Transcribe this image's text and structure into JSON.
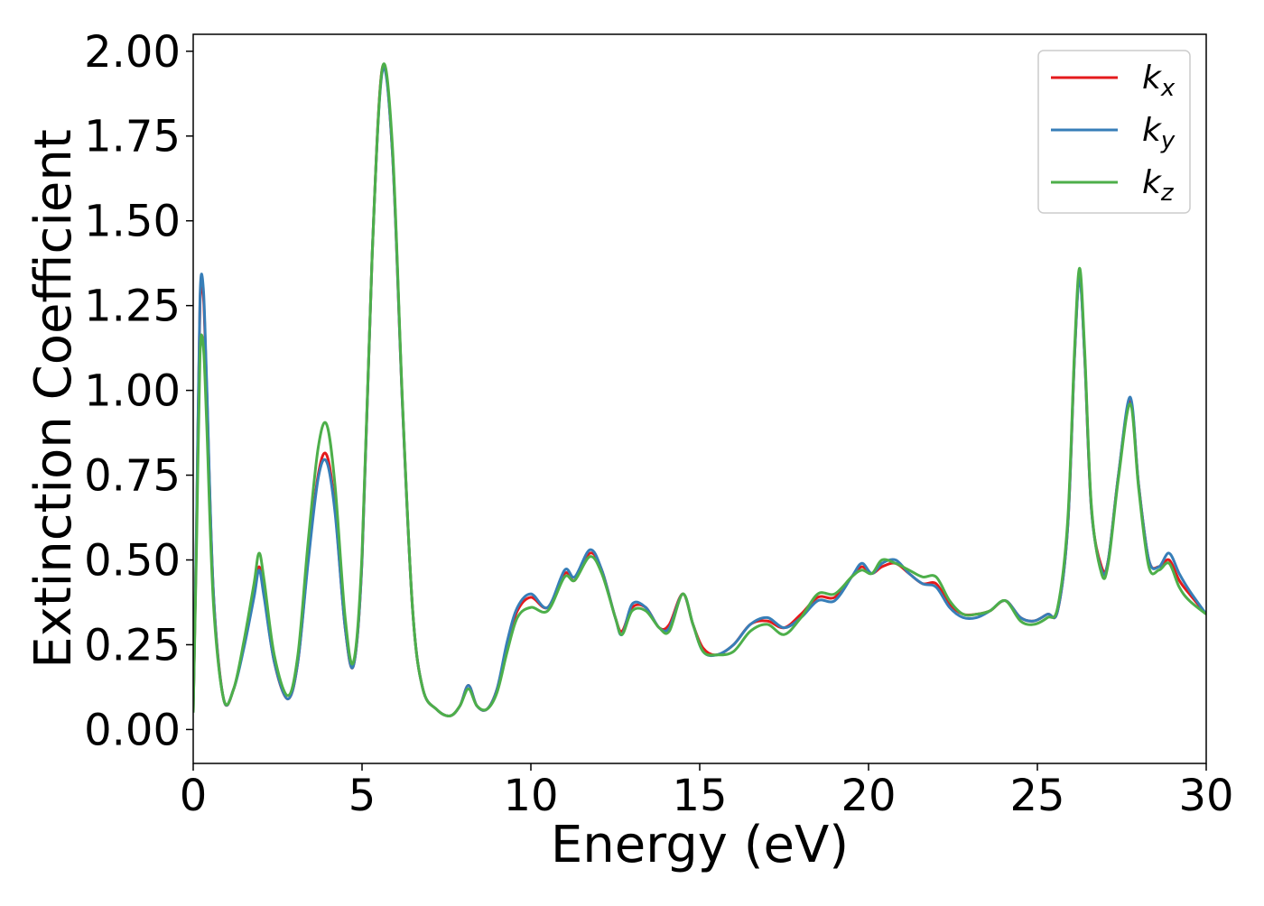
{
  "chart_data": {
    "type": "line",
    "xlabel": "Energy (eV)",
    "ylabel": "Extinction Coefficient",
    "xlim": [
      0,
      30
    ],
    "ylim": [
      -0.1,
      2.05
    ],
    "xticks": [
      0,
      5,
      10,
      15,
      20,
      25,
      30
    ],
    "xtick_labels": [
      "0",
      "5",
      "10",
      "15",
      "20",
      "25",
      "30"
    ],
    "yticks": [
      0,
      0.25,
      0.5,
      0.75,
      1.0,
      1.25,
      1.5,
      1.75,
      2.0
    ],
    "ytick_labels": [
      "0.00",
      "0.25",
      "0.50",
      "0.75",
      "1.00",
      "1.25",
      "1.50",
      "1.75",
      "2.00"
    ],
    "grid": false,
    "legend_position": "top-right",
    "series": [
      {
        "name": "k",
        "subscript": "x",
        "color": "#e41a1c",
        "x": [
          0,
          0.1,
          0.2,
          0.3,
          0.4,
          0.6,
          0.9,
          1.2,
          1.5,
          1.8,
          1.95,
          2.1,
          2.4,
          2.8,
          3.1,
          3.4,
          3.7,
          3.95,
          4.2,
          4.5,
          4.75,
          5.0,
          5.3,
          5.6,
          5.9,
          6.2,
          6.5,
          6.8,
          7.2,
          7.6,
          7.9,
          8.15,
          8.4,
          8.7,
          9.0,
          9.3,
          9.6,
          10.0,
          10.5,
          11.0,
          11.3,
          11.75,
          12.1,
          12.5,
          12.7,
          13.0,
          13.4,
          13.8,
          14.1,
          14.5,
          14.8,
          15.1,
          15.5,
          16.0,
          16.5,
          17.0,
          17.5,
          18.0,
          18.5,
          19.0,
          19.5,
          19.8,
          20.1,
          20.4,
          20.8,
          21.2,
          21.6,
          22.0,
          22.4,
          22.8,
          23.2,
          23.6,
          24.05,
          24.5,
          24.9,
          25.3,
          25.6,
          25.9,
          26.1,
          26.25,
          26.4,
          26.6,
          26.9,
          27.1,
          27.4,
          27.75,
          28.0,
          28.3,
          28.6,
          28.9,
          29.2,
          29.5,
          30.0
        ],
        "y": [
          0.05,
          0.6,
          1.25,
          1.28,
          1.0,
          0.4,
          0.09,
          0.12,
          0.25,
          0.4,
          0.48,
          0.4,
          0.2,
          0.09,
          0.2,
          0.5,
          0.75,
          0.81,
          0.65,
          0.3,
          0.19,
          0.5,
          1.4,
          1.95,
          1.7,
          0.95,
          0.35,
          0.12,
          0.06,
          0.04,
          0.07,
          0.13,
          0.07,
          0.06,
          0.12,
          0.25,
          0.35,
          0.39,
          0.36,
          0.46,
          0.44,
          0.52,
          0.47,
          0.33,
          0.29,
          0.36,
          0.36,
          0.3,
          0.31,
          0.4,
          0.31,
          0.24,
          0.22,
          0.25,
          0.31,
          0.32,
          0.3,
          0.34,
          0.39,
          0.39,
          0.45,
          0.48,
          0.46,
          0.48,
          0.49,
          0.46,
          0.43,
          0.43,
          0.37,
          0.34,
          0.34,
          0.35,
          0.38,
          0.33,
          0.32,
          0.34,
          0.35,
          0.6,
          1.1,
          1.34,
          1.1,
          0.65,
          0.48,
          0.5,
          0.75,
          0.97,
          0.72,
          0.5,
          0.48,
          0.5,
          0.44,
          0.4,
          0.34
        ]
      },
      {
        "name": "k",
        "subscript": "y",
        "color": "#377eb8",
        "x": [
          0,
          0.1,
          0.2,
          0.3,
          0.4,
          0.6,
          0.9,
          1.2,
          1.5,
          1.8,
          1.95,
          2.1,
          2.4,
          2.8,
          3.1,
          3.4,
          3.7,
          3.95,
          4.2,
          4.5,
          4.75,
          5.0,
          5.3,
          5.6,
          5.9,
          6.2,
          6.5,
          6.8,
          7.2,
          7.6,
          7.9,
          8.15,
          8.4,
          8.7,
          9.0,
          9.3,
          9.6,
          10.0,
          10.5,
          11.0,
          11.3,
          11.75,
          12.1,
          12.5,
          12.7,
          13.0,
          13.4,
          13.8,
          14.1,
          14.5,
          14.8,
          15.1,
          15.5,
          16.0,
          16.5,
          17.0,
          17.5,
          18.0,
          18.5,
          19.0,
          19.5,
          19.8,
          20.1,
          20.4,
          20.8,
          21.2,
          21.6,
          22.0,
          22.4,
          22.8,
          23.2,
          23.6,
          24.05,
          24.5,
          24.9,
          25.3,
          25.6,
          25.9,
          26.1,
          26.25,
          26.4,
          26.6,
          26.9,
          27.1,
          27.4,
          27.75,
          28.0,
          28.3,
          28.6,
          28.9,
          29.2,
          29.5,
          30.0
        ],
        "y": [
          0.05,
          0.62,
          1.27,
          1.3,
          1.02,
          0.4,
          0.09,
          0.12,
          0.24,
          0.39,
          0.47,
          0.39,
          0.2,
          0.09,
          0.2,
          0.49,
          0.74,
          0.79,
          0.64,
          0.3,
          0.19,
          0.5,
          1.4,
          1.94,
          1.7,
          0.95,
          0.35,
          0.12,
          0.06,
          0.04,
          0.07,
          0.13,
          0.07,
          0.06,
          0.12,
          0.26,
          0.36,
          0.4,
          0.36,
          0.47,
          0.45,
          0.53,
          0.47,
          0.33,
          0.28,
          0.37,
          0.36,
          0.3,
          0.3,
          0.4,
          0.31,
          0.23,
          0.22,
          0.25,
          0.31,
          0.33,
          0.3,
          0.33,
          0.38,
          0.38,
          0.45,
          0.49,
          0.46,
          0.49,
          0.5,
          0.46,
          0.43,
          0.42,
          0.36,
          0.33,
          0.33,
          0.35,
          0.38,
          0.33,
          0.32,
          0.34,
          0.35,
          0.6,
          1.1,
          1.33,
          1.1,
          0.65,
          0.47,
          0.5,
          0.75,
          0.98,
          0.72,
          0.5,
          0.48,
          0.52,
          0.46,
          0.41,
          0.34
        ]
      },
      {
        "name": "k",
        "subscript": "z",
        "color": "#4daf4a",
        "x": [
          0,
          0.1,
          0.2,
          0.3,
          0.4,
          0.6,
          0.9,
          1.2,
          1.5,
          1.8,
          1.95,
          2.1,
          2.4,
          2.8,
          3.1,
          3.4,
          3.7,
          3.95,
          4.2,
          4.5,
          4.75,
          5.0,
          5.3,
          5.6,
          5.9,
          6.2,
          6.5,
          6.8,
          7.2,
          7.6,
          7.9,
          8.15,
          8.4,
          8.7,
          9.0,
          9.3,
          9.6,
          10.0,
          10.5,
          11.0,
          11.3,
          11.75,
          12.1,
          12.5,
          12.7,
          13.0,
          13.4,
          13.8,
          14.1,
          14.5,
          14.8,
          15.1,
          15.5,
          16.0,
          16.5,
          17.0,
          17.5,
          18.0,
          18.5,
          19.0,
          19.5,
          19.8,
          20.1,
          20.4,
          20.8,
          21.2,
          21.6,
          22.0,
          22.4,
          22.8,
          23.2,
          23.6,
          24.05,
          24.5,
          24.9,
          25.3,
          25.6,
          25.9,
          26.1,
          26.25,
          26.4,
          26.6,
          26.9,
          27.1,
          27.4,
          27.75,
          28.0,
          28.3,
          28.6,
          28.9,
          29.2,
          29.5,
          30.0
        ],
        "y": [
          0.05,
          0.55,
          1.1,
          1.13,
          0.9,
          0.37,
          0.09,
          0.12,
          0.26,
          0.43,
          0.52,
          0.44,
          0.22,
          0.1,
          0.22,
          0.55,
          0.83,
          0.9,
          0.72,
          0.33,
          0.2,
          0.52,
          1.4,
          1.95,
          1.72,
          0.96,
          0.35,
          0.12,
          0.06,
          0.04,
          0.07,
          0.12,
          0.07,
          0.06,
          0.11,
          0.23,
          0.33,
          0.36,
          0.35,
          0.45,
          0.44,
          0.51,
          0.46,
          0.33,
          0.28,
          0.35,
          0.35,
          0.3,
          0.29,
          0.4,
          0.31,
          0.23,
          0.22,
          0.23,
          0.29,
          0.31,
          0.28,
          0.33,
          0.4,
          0.4,
          0.45,
          0.47,
          0.46,
          0.5,
          0.49,
          0.47,
          0.45,
          0.45,
          0.38,
          0.34,
          0.34,
          0.35,
          0.38,
          0.32,
          0.31,
          0.33,
          0.36,
          0.62,
          1.12,
          1.36,
          1.12,
          0.66,
          0.46,
          0.49,
          0.74,
          0.96,
          0.71,
          0.48,
          0.47,
          0.49,
          0.42,
          0.38,
          0.34
        ]
      }
    ]
  }
}
